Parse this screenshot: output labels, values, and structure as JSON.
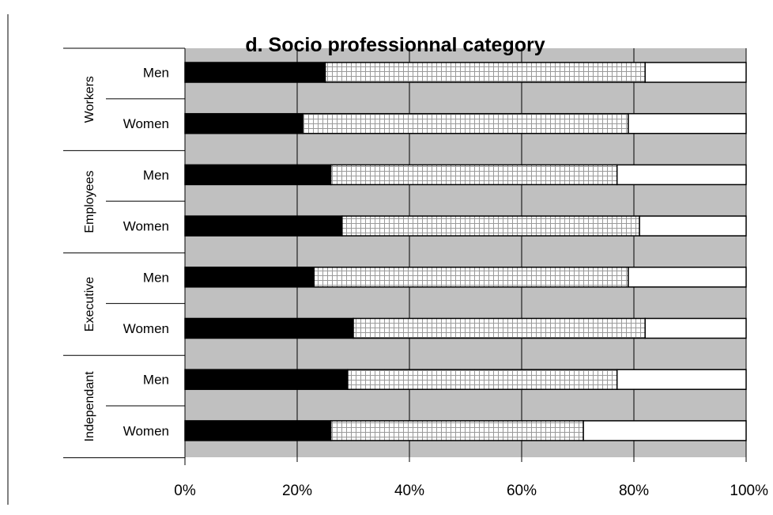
{
  "chart_data": {
    "type": "bar",
    "orientation": "horizontal",
    "stacked": true,
    "title": "d. Socio professionnal category",
    "groups": [
      {
        "label": "Workers",
        "rows": [
          {
            "label": "Men",
            "values": [
              25,
              57,
              18
            ]
          },
          {
            "label": "Women",
            "values": [
              21,
              58,
              21
            ]
          }
        ]
      },
      {
        "label": "Employees",
        "rows": [
          {
            "label": "Men",
            "values": [
              26,
              51,
              23
            ]
          },
          {
            "label": "Women",
            "values": [
              28,
              53,
              19
            ]
          }
        ]
      },
      {
        "label": "Executive",
        "rows": [
          {
            "label": "Men",
            "values": [
              23,
              56,
              21
            ]
          },
          {
            "label": "Women",
            "values": [
              30,
              52,
              18
            ]
          }
        ]
      },
      {
        "label": "Independant",
        "rows": [
          {
            "label": "Men",
            "values": [
              29,
              48,
              23
            ]
          },
          {
            "label": "Women",
            "values": [
              26,
              45,
              29
            ]
          }
        ]
      }
    ],
    "segment_styles": [
      "solid-black",
      "grid-hatch",
      "white"
    ],
    "xlim": [
      0,
      100
    ],
    "x_ticks": [
      "0%",
      "20%",
      "40%",
      "60%",
      "80%",
      "100%"
    ],
    "grid": true,
    "legend": "none",
    "colors": {
      "plot_background": "#c0c0c0",
      "segment1": "#000000",
      "segment2": "#ffffff",
      "segment3": "#ffffff",
      "gridlines": "#000000"
    }
  }
}
